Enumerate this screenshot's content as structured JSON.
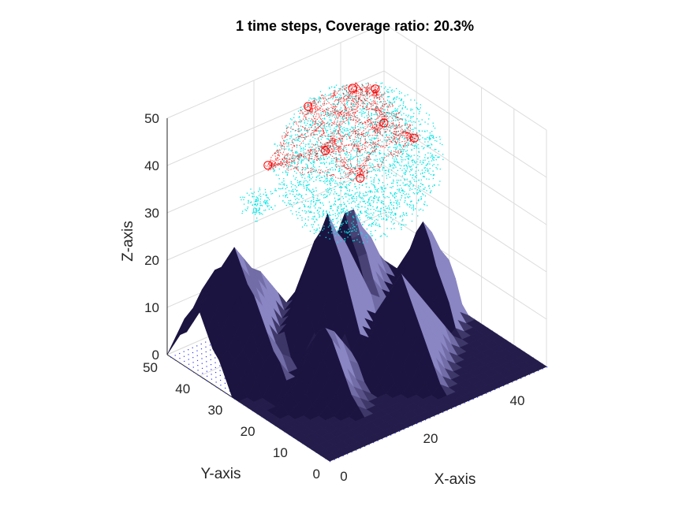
{
  "chart_data": {
    "type": "surface",
    "title": "1 time steps, Coverage ratio: 20.3%",
    "time_steps": 1,
    "coverage_ratio_percent": 20.3,
    "xlabel": "X-axis",
    "ylabel": "Y-axis",
    "zlabel": "Z-axis",
    "xlim": [
      0,
      50
    ],
    "ylim": [
      0,
      50
    ],
    "zlim": [
      0,
      50
    ],
    "xticks": [
      "0",
      "20",
      "40"
    ],
    "yticks": [
      "0",
      "10",
      "20",
      "30",
      "40",
      "50"
    ],
    "zticks": [
      "0",
      "10",
      "20",
      "30",
      "40",
      "50"
    ],
    "grid": true,
    "terrain_peaks": [
      {
        "x": 8,
        "y": 40,
        "h": 24,
        "s": 10
      },
      {
        "x": 22,
        "y": 30,
        "h": 30,
        "s": 8
      },
      {
        "x": 33,
        "y": 38,
        "h": 24,
        "s": 7
      },
      {
        "x": 44,
        "y": 30,
        "h": 20,
        "s": 6
      },
      {
        "x": 30,
        "y": 18,
        "h": 20,
        "s": 7
      },
      {
        "x": 14,
        "y": 20,
        "h": 14,
        "s": 6
      }
    ],
    "sensor_cloud_center": [
      25,
      25,
      42
    ],
    "sensor_nodes": [
      [
        30,
        33,
        52
      ],
      [
        33,
        30,
        52
      ],
      [
        22,
        36,
        50
      ],
      [
        12,
        35,
        42
      ],
      [
        36,
        22,
        44
      ],
      [
        28,
        28,
        36
      ],
      [
        20,
        28,
        45
      ],
      [
        32,
        26,
        47
      ]
    ],
    "colors": {
      "terrain": "#1b1440",
      "terrain_highlight": "#8a86c4",
      "floor_points": "#3030ff",
      "coverage_points": "#00e5e5",
      "paths": "#ff0000",
      "grid": "#dcdcdc",
      "axis": "#262626"
    }
  }
}
